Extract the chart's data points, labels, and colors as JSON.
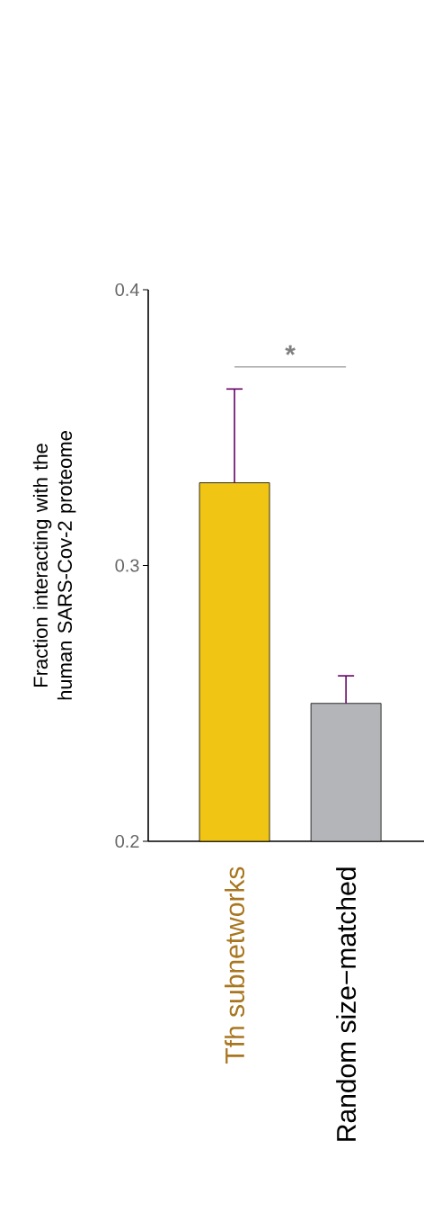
{
  "chart_data": {
    "type": "bar",
    "ylabel": "Fraction interacting with the human SARS-Cov-2 proteome",
    "categories": [
      "Tfh subnetworks",
      "Random size−matched"
    ],
    "values": [
      0.33,
      0.25
    ],
    "colors": [
      "#f0c514",
      "#b4b5b9"
    ],
    "errors": [
      [
        0.33,
        0.364
      ],
      [
        0.25,
        0.26
      ]
    ],
    "ylim": [
      0.2,
      0.4
    ],
    "yticks": [
      0.2,
      0.3,
      0.4
    ],
    "annotations": [
      "*"
    ],
    "grid": false
  }
}
